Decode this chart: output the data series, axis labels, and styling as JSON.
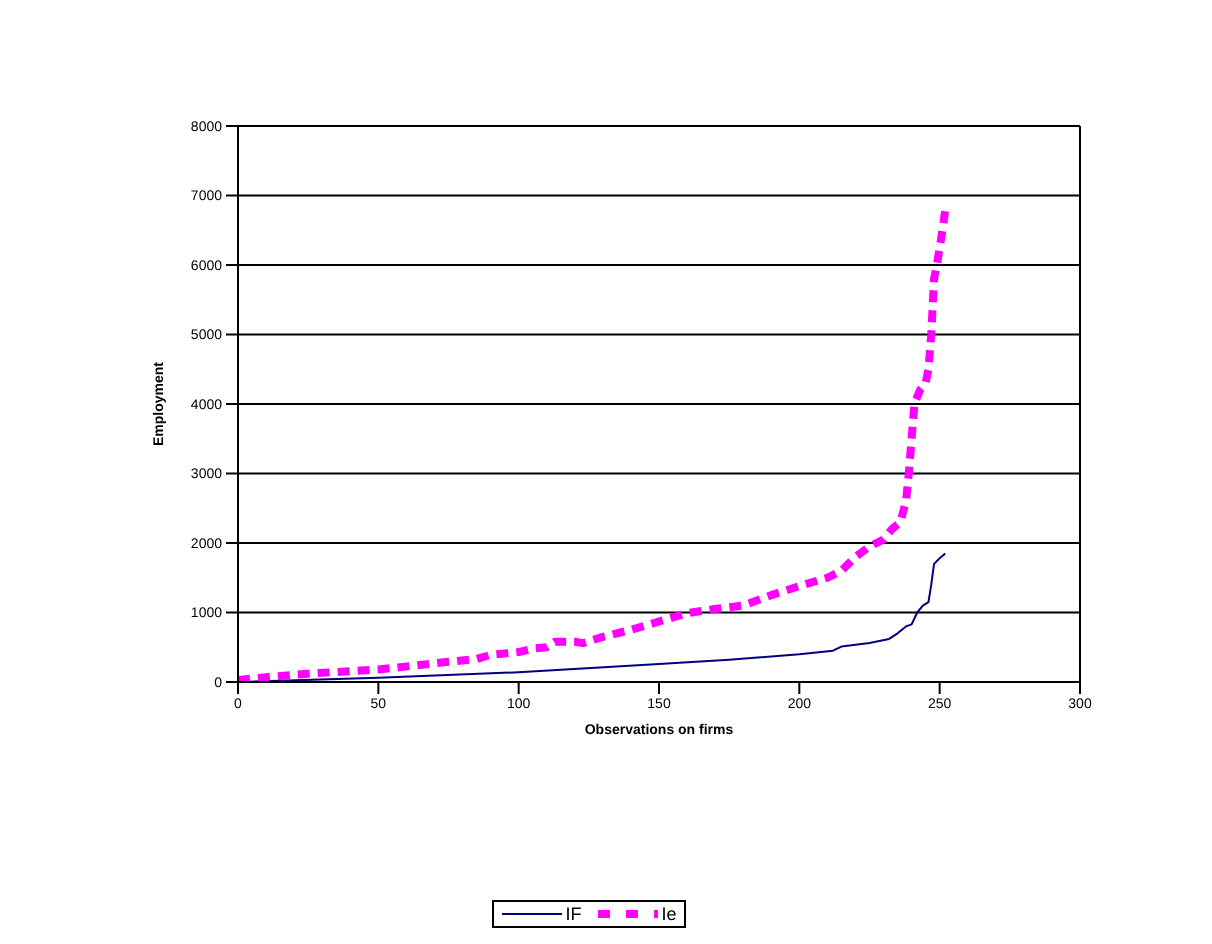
{
  "chart_data": {
    "type": "line",
    "xlabel": "Observations on firms",
    "ylabel": "Employment",
    "xlim": [
      0,
      300
    ],
    "xticks": [
      0,
      50,
      100,
      150,
      200,
      250,
      300
    ],
    "ylim": [
      0,
      8000
    ],
    "yticks": [
      0,
      1000,
      2000,
      3000,
      4000,
      5000,
      6000,
      7000,
      8000
    ],
    "grid": "y",
    "legend": "bottom",
    "marker": "none",
    "series": [
      {
        "name": "IF",
        "color": "#000080",
        "line_style": "solid",
        "x": [
          0,
          50,
          100,
          150,
          175,
          200,
          212,
          215,
          225,
          232,
          235,
          238,
          240,
          242,
          244,
          246,
          247,
          248,
          250,
          252
        ],
        "values": [
          0,
          60,
          140,
          260,
          320,
          400,
          450,
          510,
          560,
          620,
          700,
          800,
          830,
          1000,
          1100,
          1150,
          1400,
          1700,
          1780,
          1850
        ]
      },
      {
        "name": "Ie",
        "color": "#ff00ff",
        "line_style": "dashed",
        "x": [
          0,
          10,
          25,
          50,
          75,
          85,
          90,
          100,
          105,
          110,
          113,
          120,
          123,
          130,
          140,
          150,
          160,
          170,
          180,
          190,
          200,
          210,
          215,
          220,
          225,
          230,
          233,
          236,
          238,
          239,
          241,
          243,
          245,
          246,
          247,
          248,
          249,
          251,
          252
        ],
        "values": [
          30,
          70,
          120,
          180,
          290,
          330,
          390,
          430,
          480,
          500,
          580,
          580,
          560,
          650,
          750,
          870,
          990,
          1050,
          1100,
          1250,
          1380,
          1500,
          1600,
          1800,
          1950,
          2050,
          2200,
          2300,
          2600,
          3000,
          4000,
          4200,
          4300,
          4500,
          5000,
          5800,
          6000,
          6500,
          6800
        ]
      }
    ]
  }
}
